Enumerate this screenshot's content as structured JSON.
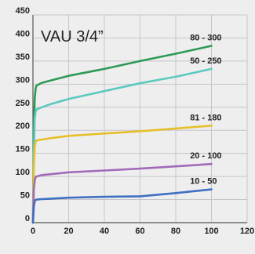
{
  "chart_data": {
    "type": "line",
    "title": "VAU 3/4”",
    "xlabel": "",
    "ylabel": "",
    "xlim": [
      0,
      120
    ],
    "ylim": [
      0,
      450
    ],
    "xticks": [
      0,
      20,
      40,
      60,
      80,
      100,
      120
    ],
    "yticks": [
      0,
      50,
      100,
      150,
      200,
      250,
      300,
      350,
      400,
      450
    ],
    "grid": true,
    "series": [
      {
        "name": "80 - 300",
        "color": "#2e9a55",
        "x": [
          0,
          0.5,
          1,
          1.5,
          2,
          5,
          10,
          20,
          40,
          60,
          80,
          100
        ],
        "y": [
          0,
          200,
          270,
          290,
          297,
          303,
          308,
          318,
          333,
          350,
          366,
          383
        ]
      },
      {
        "name": "50 - 250",
        "color": "#5cc9bf",
        "x": [
          0,
          0.5,
          1,
          1.5,
          2,
          5,
          10,
          20,
          40,
          60,
          80,
          100
        ],
        "y": [
          0,
          150,
          225,
          240,
          245,
          250,
          257,
          268,
          285,
          302,
          316,
          333
        ]
      },
      {
        "name": "81 - 180",
        "color": "#e6bf2a",
        "x": [
          0,
          0.5,
          1,
          1.5,
          2,
          5,
          10,
          20,
          40,
          60,
          80,
          100
        ],
        "y": [
          0,
          120,
          165,
          175,
          178,
          180,
          183,
          188,
          193,
          198,
          204,
          210
        ]
      },
      {
        "name": "20 - 100",
        "color": "#a26ab8",
        "x": [
          0,
          0.5,
          1,
          1.5,
          2,
          5,
          10,
          20,
          40,
          60,
          80,
          100
        ],
        "y": [
          0,
          70,
          92,
          98,
          100,
          103,
          105,
          109,
          113,
          117,
          122,
          127
        ]
      },
      {
        "name": "10 - 50",
        "color": "#3f6fc1",
        "x": [
          0,
          0.5,
          1,
          1.5,
          2,
          5,
          10,
          20,
          40,
          60,
          80,
          100
        ],
        "y": [
          0,
          35,
          47,
          49,
          50,
          51,
          52,
          54,
          56,
          57,
          64,
          72
        ]
      }
    ]
  }
}
